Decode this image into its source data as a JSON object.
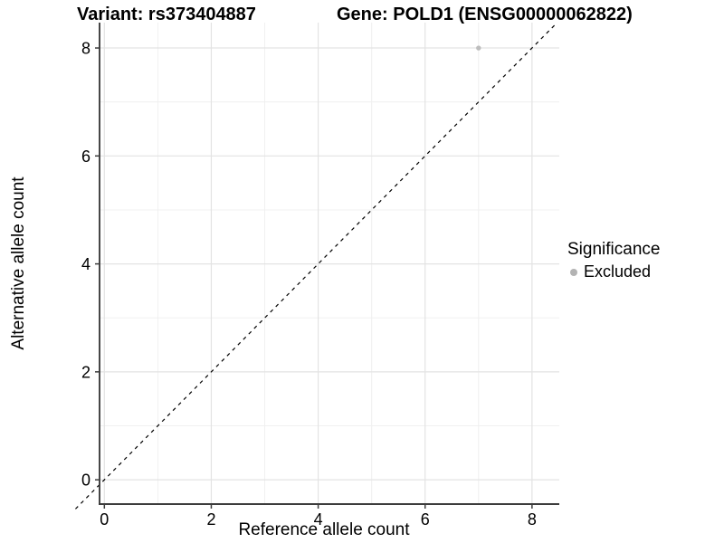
{
  "titles": {
    "variant": "Variant: rs373404887",
    "gene": "Gene: POLD1 (ENSG00000062822)"
  },
  "chart_data": {
    "type": "scatter",
    "xlabel": "Reference allele count",
    "ylabel": "Alternative allele count",
    "xticks": [
      0,
      2,
      4,
      6,
      8
    ],
    "yticks": [
      0,
      2,
      4,
      6,
      8
    ],
    "xminor": [
      1,
      3,
      5,
      7
    ],
    "yminor": [
      1,
      3,
      5,
      7
    ],
    "xlim": [
      -0.09,
      8.51
    ],
    "ylim": [
      -0.45,
      8.47
    ],
    "grid": "major+minor",
    "points": [
      {
        "x": 7,
        "y": 8,
        "significance": "Excluded"
      }
    ],
    "reference_line": {
      "slope": 1,
      "intercept": 0,
      "style": "dashed",
      "color": "#000000"
    },
    "legend": {
      "title": "Significance",
      "position": "right",
      "items": [
        {
          "label": "Excluded",
          "color": "#b3b3b3"
        }
      ]
    }
  },
  "colors": {
    "background": "#ffffff",
    "grid_major": "#e3e3e3",
    "grid_minor": "#f0f0f0",
    "axis": "#3c3c3c",
    "point": "#bdbdbd"
  }
}
